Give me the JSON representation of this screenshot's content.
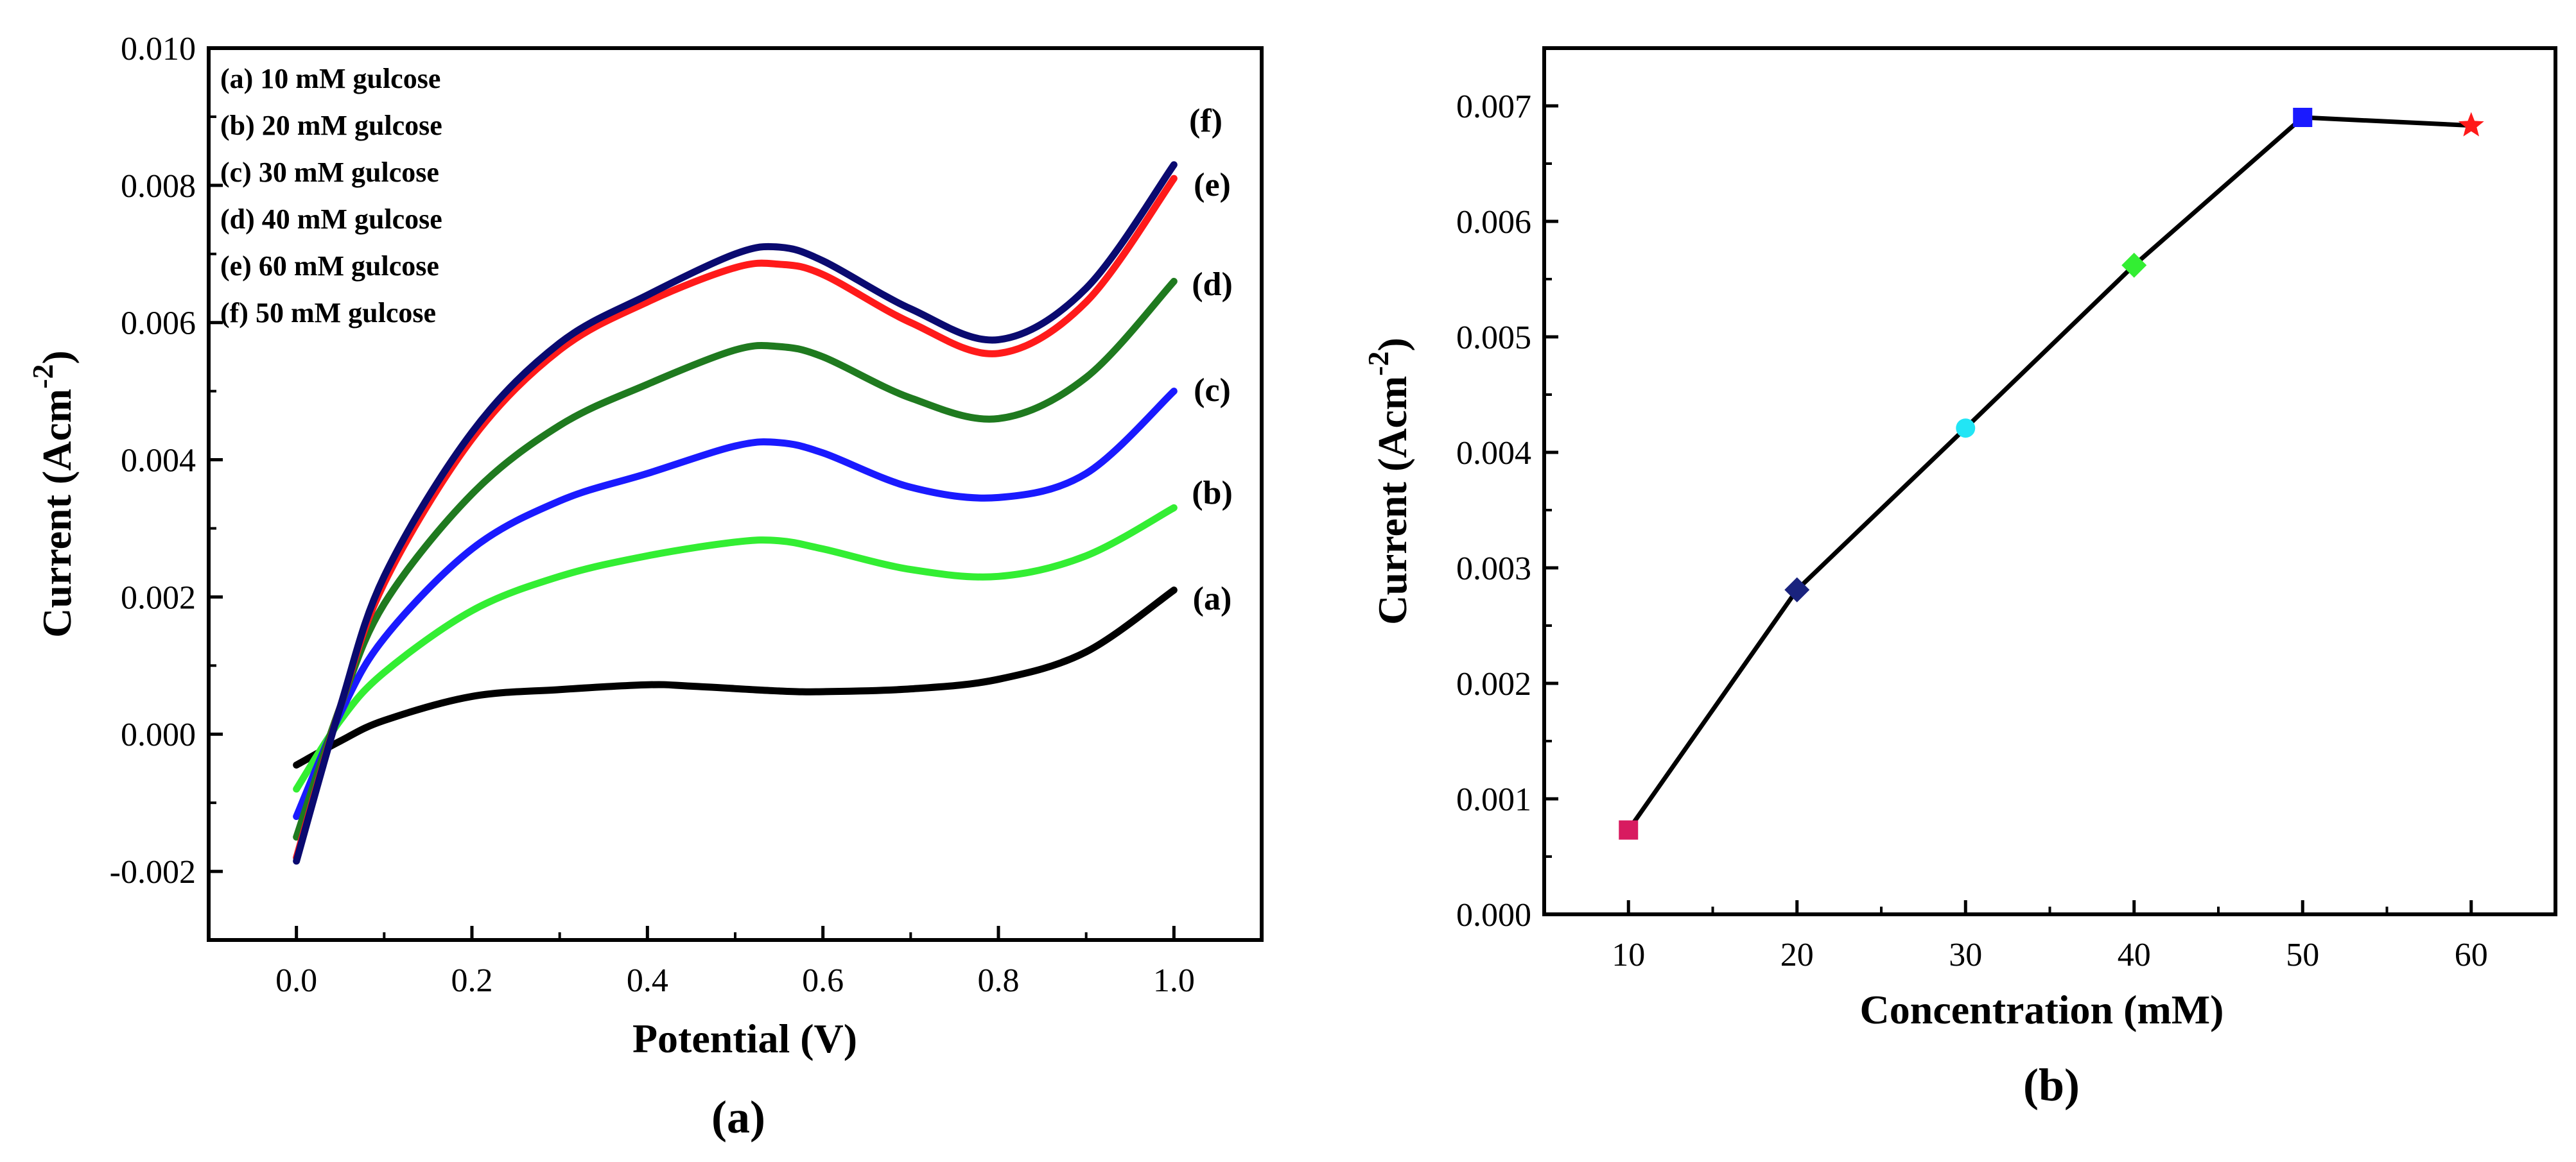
{
  "chart_data": [
    {
      "type": "line",
      "panel_label": "(a)",
      "xlabel": "Potential (V)",
      "ylabel": "Current (Acm",
      "ylabel_sup": "-2",
      "ylabel_close": ")",
      "xlim": [
        -0.1,
        1.1
      ],
      "ylim": [
        -0.003,
        0.01
      ],
      "xticks": [
        0.0,
        0.2,
        0.4,
        0.6,
        0.8,
        1.0
      ],
      "xtick_labels": [
        "0.0",
        "0.2",
        "0.4",
        "0.6",
        "0.8",
        "1.0"
      ],
      "yticks": [
        -0.002,
        0.0,
        0.002,
        0.004,
        0.006,
        0.008,
        0.01
      ],
      "ytick_labels": [
        "-0.002",
        "0.000",
        "0.002",
        "0.004",
        "0.006",
        "0.008",
        "0.010"
      ],
      "grid": false,
      "legend_position": "top-left",
      "legend": [
        "(a) 10 mM gulcose",
        "(b) 20 mM gulcose",
        "(c) 30 mM gulcose",
        "(d) 40 mM gulcose",
        "(e) 60 mM gulcose",
        "(f) 50 mM gulcose"
      ],
      "series": [
        {
          "label": "(a)",
          "color": "#000000",
          "x": [
            0.0,
            0.05,
            0.1,
            0.2,
            0.3,
            0.4,
            0.45,
            0.55,
            0.6,
            0.7,
            0.8,
            0.9,
            1.0
          ],
          "y": [
            -0.00045,
            -0.0001,
            0.0002,
            0.00055,
            0.00065,
            0.00072,
            0.0007,
            0.00063,
            0.00062,
            0.00066,
            0.0008,
            0.0012,
            0.0021
          ]
        },
        {
          "label": "(b)",
          "color": "#33ee33",
          "x": [
            0.0,
            0.05,
            0.1,
            0.2,
            0.3,
            0.4,
            0.5,
            0.55,
            0.6,
            0.7,
            0.8,
            0.9,
            1.0
          ],
          "y": [
            -0.0008,
            0.0002,
            0.0009,
            0.0018,
            0.0023,
            0.0026,
            0.0028,
            0.00282,
            0.0027,
            0.0024,
            0.0023,
            0.0026,
            0.0033
          ]
        },
        {
          "label": "(c)",
          "color": "#1a1aff",
          "x": [
            0.0,
            0.05,
            0.1,
            0.2,
            0.3,
            0.4,
            0.5,
            0.55,
            0.6,
            0.7,
            0.8,
            0.9,
            1.0
          ],
          "y": [
            -0.0012,
            0.0003,
            0.0014,
            0.0027,
            0.0034,
            0.0038,
            0.0042,
            0.00425,
            0.0041,
            0.0036,
            0.00345,
            0.0038,
            0.005
          ]
        },
        {
          "label": "(d)",
          "color": "#1f7a1f",
          "x": [
            0.0,
            0.05,
            0.1,
            0.2,
            0.3,
            0.4,
            0.5,
            0.55,
            0.6,
            0.7,
            0.8,
            0.9,
            1.0
          ],
          "y": [
            -0.0015,
            0.0004,
            0.0019,
            0.0035,
            0.0045,
            0.0051,
            0.0056,
            0.00565,
            0.0055,
            0.0049,
            0.0046,
            0.0052,
            0.0066
          ]
        },
        {
          "label": "(e)",
          "color": "#ff1a1a",
          "x": [
            0.0,
            0.05,
            0.1,
            0.2,
            0.3,
            0.4,
            0.5,
            0.55,
            0.6,
            0.7,
            0.8,
            0.9,
            1.0
          ],
          "y": [
            -0.0018,
            0.0004,
            0.0022,
            0.0043,
            0.0056,
            0.0063,
            0.0068,
            0.00685,
            0.0067,
            0.006,
            0.00555,
            0.0063,
            0.0081
          ]
        },
        {
          "label": "(f)",
          "color": "#0a0a70",
          "x": [
            0.0,
            0.05,
            0.1,
            0.2,
            0.3,
            0.4,
            0.5,
            0.55,
            0.6,
            0.7,
            0.8,
            0.9,
            1.0
          ],
          "y": [
            -0.00185,
            0.0004,
            0.0023,
            0.0044,
            0.0057,
            0.0064,
            0.007,
            0.0071,
            0.0069,
            0.0062,
            0.00575,
            0.0065,
            0.0083
          ]
        }
      ]
    },
    {
      "type": "line",
      "panel_label": "(b)",
      "xlabel": "Concentration (mM)",
      "ylabel": "Current (Acm",
      "ylabel_sup": "-2",
      "ylabel_close": ")",
      "xlim": [
        5,
        65
      ],
      "ylim": [
        0.0,
        0.0075
      ],
      "xticks": [
        10,
        20,
        30,
        40,
        50,
        60
      ],
      "xtick_labels": [
        "10",
        "20",
        "30",
        "40",
        "50",
        "60"
      ],
      "yticks": [
        0.0,
        0.001,
        0.002,
        0.003,
        0.004,
        0.005,
        0.006,
        0.007
      ],
      "ytick_labels": [
        "0.000",
        "0.001",
        "0.002",
        "0.003",
        "0.004",
        "0.005",
        "0.006",
        "0.007"
      ],
      "grid": false,
      "series": [
        {
          "x": [
            10,
            20,
            30,
            40,
            50,
            60
          ],
          "y": [
            0.00073,
            0.00281,
            0.00421,
            0.00562,
            0.0069,
            0.00683
          ],
          "color": "#000000",
          "markers": [
            {
              "shape": "square",
              "color": "#d81b60"
            },
            {
              "shape": "diamond",
              "color": "#1a237e"
            },
            {
              "shape": "circle",
              "color": "#22e5f5"
            },
            {
              "shape": "diamond",
              "color": "#33ee33"
            },
            {
              "shape": "square",
              "color": "#1a1aff"
            },
            {
              "shape": "star",
              "color": "#ff1a1a"
            }
          ]
        }
      ]
    }
  ]
}
